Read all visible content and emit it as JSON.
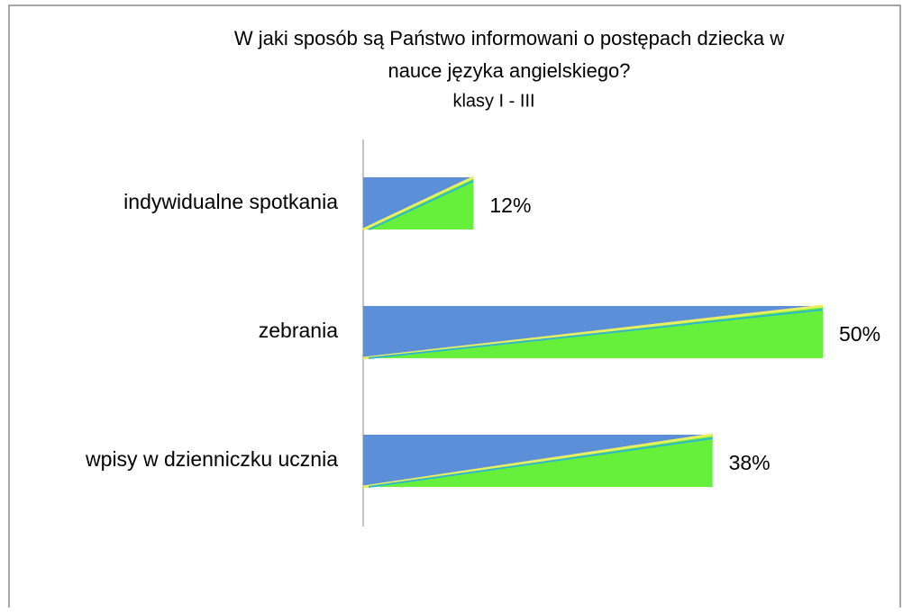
{
  "chart_data": {
    "type": "bar",
    "orientation": "horizontal",
    "title": [
      "W jaki sposób są Państwo informowani o postępach dziecka w",
      "nauce języka angielskiego?"
    ],
    "subtitle": "klasy I - III",
    "categories": [
      "indywidualne spotkania",
      "zebrania",
      "wpisy w dzienniczku ucznia"
    ],
    "values": [
      12,
      50,
      38
    ],
    "value_labels": [
      "12%",
      "50%",
      "38%"
    ],
    "color": "#5b8fd8",
    "color2": "#66f03c"
  }
}
